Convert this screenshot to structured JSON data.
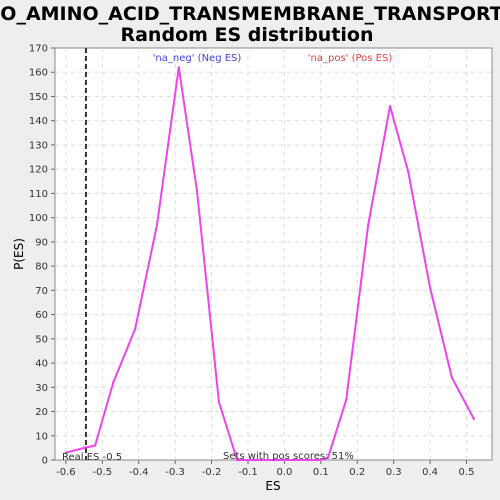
{
  "page": {
    "title_line1": "GO_AMINO_ACID_TRANSMEMBRANE_TRANSPORT:",
    "title_line2": "Random ES distribution"
  },
  "chart_data": {
    "type": "line",
    "xlabel": "ES",
    "ylabel": "P(ES)",
    "xlim": [
      -0.63,
      0.57
    ],
    "ylim": [
      0,
      170
    ],
    "x_ticks": [
      "-0.6",
      "-0.5",
      "-0.4",
      "-0.3",
      "-0.2",
      "-0.1",
      "0.0",
      "0.1",
      "0.2",
      "0.3",
      "0.4",
      "0.5"
    ],
    "x_tick_values": [
      -0.6,
      -0.5,
      -0.4,
      -0.3,
      -0.2,
      -0.1,
      0.0,
      0.1,
      0.2,
      0.3,
      0.4,
      0.5
    ],
    "y_ticks": [
      0,
      10,
      20,
      30,
      40,
      50,
      60,
      70,
      80,
      90,
      100,
      110,
      120,
      130,
      140,
      150,
      160,
      170
    ],
    "grid": true,
    "line_color": "#ee44ee",
    "series": [
      {
        "values_x": [
          -0.6,
          -0.55,
          -0.52,
          -0.47,
          -0.41,
          -0.35,
          -0.29,
          -0.24,
          -0.18,
          -0.13,
          -0.08,
          0.0,
          0.1,
          0.12,
          0.17,
          0.23,
          0.29,
          0.34,
          0.4,
          0.46,
          0.52
        ],
        "values_y": [
          3,
          5,
          6,
          32,
          54,
          97,
          162,
          111,
          24,
          0,
          0,
          0,
          0,
          1,
          25,
          97,
          146,
          119,
          71,
          34,
          17
        ]
      }
    ],
    "real_es": -0.545,
    "annotations": {
      "neg_label": "'na_neg' (Neg ES)",
      "pos_label": "'na_pos' (Pos ES)",
      "real_es_label": "Real ES -0.5",
      "pos_scores_label": "Sets with pos scores: 51%",
      "neg_color": "#4444dd",
      "pos_color": "#dd4444"
    }
  }
}
